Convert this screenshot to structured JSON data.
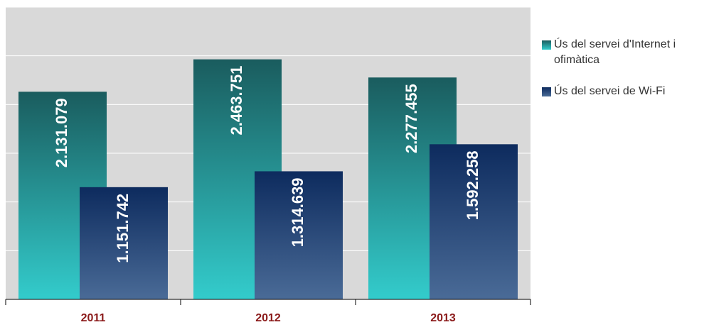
{
  "chart_data": {
    "type": "bar",
    "categories": [
      "2011",
      "2012",
      "2013"
    ],
    "series": [
      {
        "name": "Ús del servei d'Internet i ofimàtica",
        "color": "#1a5c5e",
        "gradient": [
          "#1a5c5e",
          "#33cccc"
        ],
        "values": [
          2131079,
          2463751,
          2277455
        ],
        "value_labels": [
          "2.131.079",
          "2.463.751",
          "2.277.455"
        ]
      },
      {
        "name": "Ús del servei de Wi-Fi",
        "color": "#0d2b5e",
        "gradient": [
          "#0d2b5e",
          "#4a6b97"
        ],
        "values": [
          1151742,
          1314639,
          1592258
        ],
        "value_labels": [
          "1.151.742",
          "1.314.639",
          "1.592.258"
        ]
      }
    ],
    "ylim": [
      0,
      3000000
    ],
    "yticks": [
      0,
      500000,
      1000000,
      1500000,
      2000000,
      2500000,
      3000000
    ],
    "grid": true,
    "legend": "right"
  }
}
